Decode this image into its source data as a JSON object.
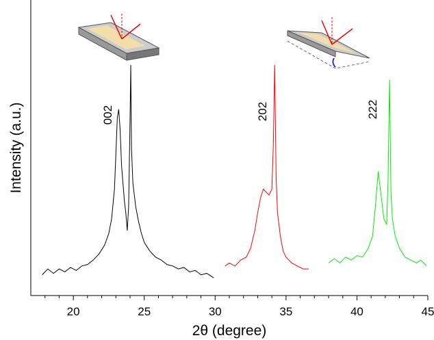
{
  "chart_data": {
    "type": "line",
    "x_label": "2θ (degree)",
    "y_label": "Intensity (a.u.)",
    "xlim": [
      17,
      45
    ],
    "xticks": [
      20,
      25,
      30,
      35,
      40,
      45
    ],
    "xminorticks": [
      18,
      19,
      21,
      22,
      23,
      24,
      26,
      27,
      28,
      29,
      31,
      32,
      33,
      34,
      36,
      37,
      38,
      39,
      41,
      42,
      43,
      44
    ],
    "ylim": [
      0,
      100
    ],
    "annotations": [
      "002",
      "202",
      "222"
    ],
    "series": [
      {
        "name": "002",
        "color": "#000000",
        "x": [
          17.8,
          18.2,
          18.6,
          19.0,
          19.4,
          19.8,
          20.2,
          20.6,
          21.0,
          21.4,
          21.8,
          22.2,
          22.5,
          22.7,
          22.9,
          23.0,
          23.1,
          23.2,
          23.3,
          23.4,
          23.5,
          23.6,
          23.7,
          23.8,
          23.9,
          24.0,
          24.05,
          24.1,
          24.2,
          24.4,
          24.6,
          24.8,
          25.0,
          25.4,
          25.8,
          26.2,
          26.6,
          27.0,
          27.4,
          27.8,
          28.2,
          28.6,
          29.0,
          29.4,
          29.9
        ],
        "values": [
          7,
          9,
          7.5,
          9,
          8,
          9.5,
          8.5,
          10,
          10.5,
          12,
          14,
          17,
          21,
          26,
          36,
          48,
          60,
          63,
          56,
          44,
          38,
          32,
          28,
          22,
          30,
          60,
          78,
          50,
          38,
          30,
          25,
          21,
          18,
          15,
          13,
          12,
          10.5,
          10,
          9,
          9.5,
          8,
          8.5,
          7,
          7.5,
          6
        ]
      },
      {
        "name": "202",
        "color": "#ff0000",
        "x": [
          30.7,
          31.0,
          31.4,
          31.8,
          32.2,
          32.5,
          32.8,
          33.0,
          33.2,
          33.4,
          33.6,
          33.8,
          34.0,
          34.1,
          34.2,
          34.3,
          34.4,
          34.6,
          34.8,
          35.0,
          35.4,
          35.8,
          36.2,
          36.6
        ],
        "values": [
          10,
          11,
          10,
          12,
          13,
          16,
          22,
          28,
          33,
          36,
          35,
          34,
          36,
          50,
          78,
          40,
          28,
          20,
          15,
          13,
          11,
          10,
          9,
          9
        ]
      },
      {
        "name": "222",
        "color": "#00ee00",
        "x": [
          38.0,
          38.4,
          38.8,
          39.2,
          39.6,
          40.0,
          40.4,
          40.8,
          41.1,
          41.3,
          41.5,
          41.7,
          41.9,
          42.1,
          42.2,
          42.3,
          42.4,
          42.5,
          42.7,
          43.0,
          43.4,
          43.8,
          44.2,
          44.5,
          44.9
        ],
        "values": [
          11,
          12.5,
          11,
          13,
          12,
          13.5,
          13,
          16,
          20,
          30,
          42,
          34,
          26,
          24,
          40,
          73,
          35,
          26,
          20,
          16,
          13,
          12,
          11,
          12,
          10
        ]
      }
    ]
  }
}
